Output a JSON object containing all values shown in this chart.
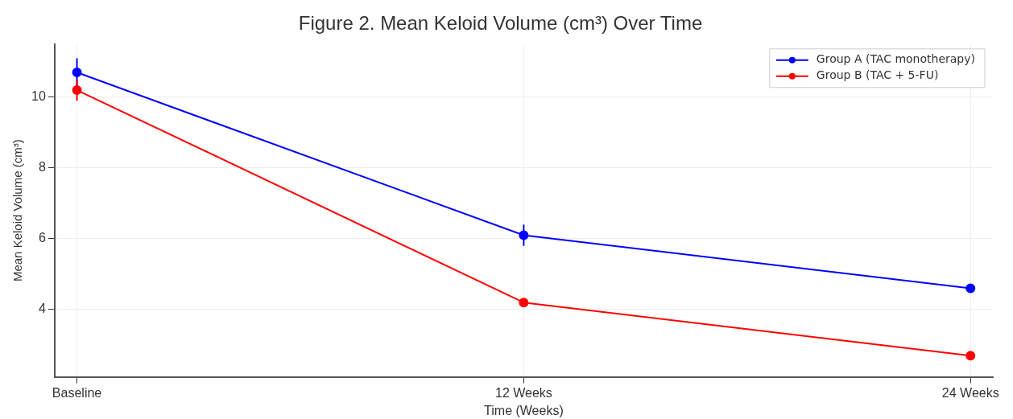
{
  "chart_data": {
    "type": "line",
    "title": "Figure 2. Mean Keloid Volume (cm³) Over Time",
    "xlabel": "Time (Weeks)",
    "ylabel": "Mean Keloid Volume (cm³)",
    "categories": [
      "Baseline",
      "12 Weeks",
      "24 Weeks"
    ],
    "series": [
      {
        "name": "Group A (TAC monotherapy)",
        "color": "#0000ff",
        "values": [
          10.7,
          6.1,
          4.6
        ],
        "errors": [
          0.4,
          0.3,
          0.1
        ]
      },
      {
        "name": "Group B (TAC + 5-FU)",
        "color": "#ff0000",
        "values": [
          10.2,
          4.2,
          2.7
        ],
        "errors": [
          0.3,
          0.1,
          0.1
        ]
      }
    ],
    "ylim": [
      2.1,
      11.5
    ],
    "yticks": [
      4,
      6,
      8,
      10
    ],
    "grid": true,
    "legend": "top right",
    "marker": "circle",
    "line_style": "solid"
  }
}
